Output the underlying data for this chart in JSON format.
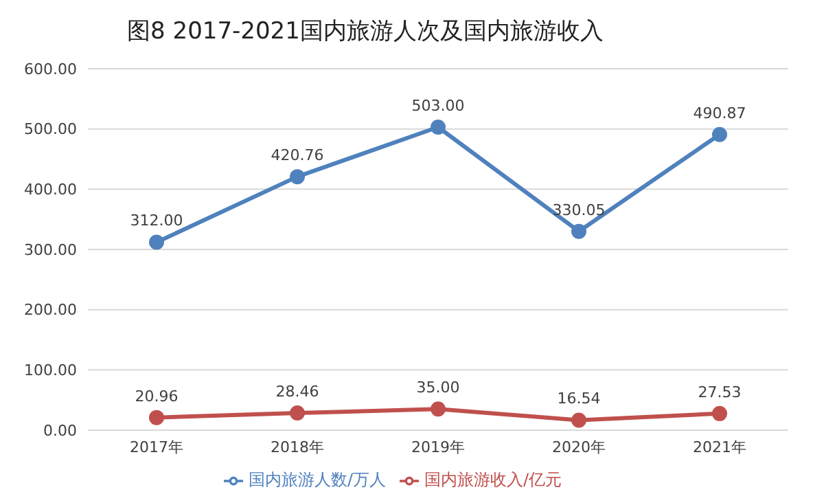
{
  "chart_data": {
    "type": "line",
    "title": "图8  2017-2021国内旅游人次及国内旅游收入",
    "categories": [
      "2017年",
      "2018年",
      "2019年",
      "2020年",
      "2021年"
    ],
    "series": [
      {
        "name": "国内旅游人数/万人",
        "color": "#4f81bd",
        "values": [
          312.0,
          420.76,
          503.0,
          330.05,
          490.87
        ],
        "value_labels": [
          "312.00",
          "420.76",
          "503.00",
          "330.05",
          "490.87"
        ]
      },
      {
        "name": "国内旅游收入/亿元",
        "color": "#c0504d",
        "values": [
          20.96,
          28.46,
          35.0,
          16.54,
          27.53
        ],
        "value_labels": [
          "20.96",
          "28.46",
          "35.00",
          "16.54",
          "27.53"
        ]
      }
    ],
    "ylim": [
      0,
      600
    ],
    "yticks": [
      {
        "value": 0,
        "label": "0.00"
      },
      {
        "value": 100,
        "label": "100.00"
      },
      {
        "value": 200,
        "label": "200.00"
      },
      {
        "value": 300,
        "label": "300.00"
      },
      {
        "value": 400,
        "label": "400.00"
      },
      {
        "value": 500,
        "label": "500.00"
      },
      {
        "value": 600,
        "label": "600.00"
      }
    ],
    "grid": "y",
    "legend": "bottom",
    "marker": "circle",
    "line_style": "solid"
  }
}
